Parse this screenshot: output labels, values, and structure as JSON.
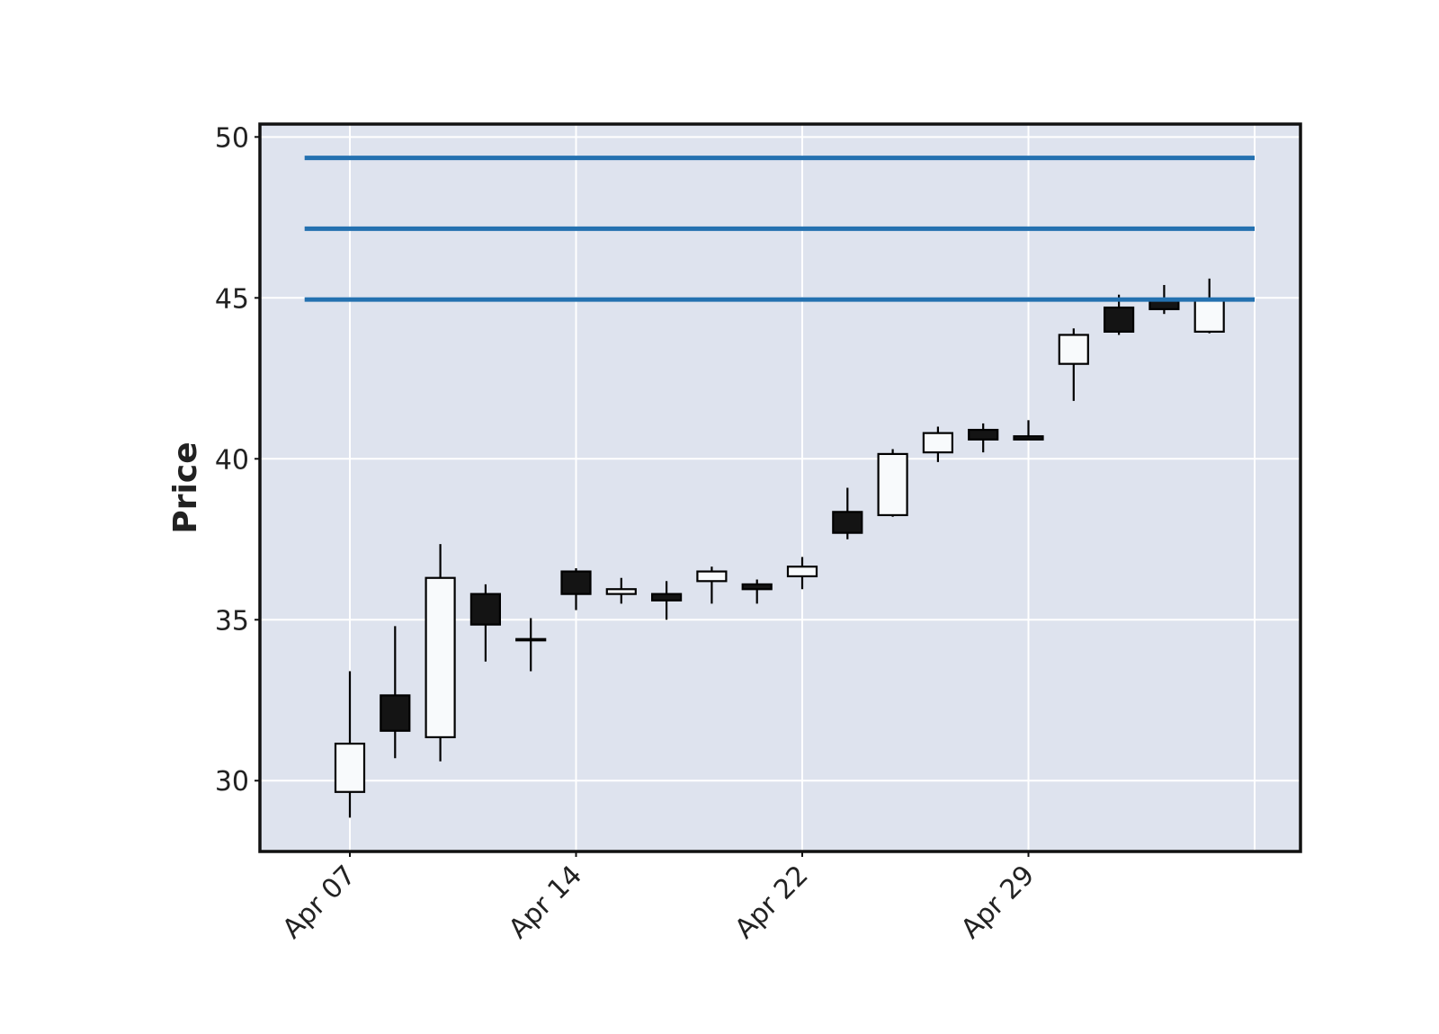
{
  "chart_data": {
    "type": "candlestick",
    "title": "",
    "xlabel": "",
    "ylabel": "Price",
    "ylim": [
      27.8,
      50.4
    ],
    "yticks": [
      30,
      35,
      40,
      45,
      50
    ],
    "x_tick_labels": [
      {
        "index": 0,
        "label": "Apr 07"
      },
      {
        "index": 5,
        "label": "Apr 14"
      },
      {
        "index": 10,
        "label": "Apr 22"
      },
      {
        "index": 15,
        "label": "Apr 29"
      }
    ],
    "grid": true,
    "colors": {
      "background": "#dee3ee",
      "grid": "#ffffff",
      "up_fill": "#f8fafc",
      "down_fill": "#141414",
      "edge": "#000000",
      "hlines": "#2471b0"
    },
    "hlines": [
      49.35,
      47.15,
      44.95
    ],
    "candles": [
      {
        "open": 29.65,
        "high": 33.4,
        "low": 28.85,
        "close": 31.15
      },
      {
        "open": 32.65,
        "high": 34.8,
        "low": 30.7,
        "close": 31.55
      },
      {
        "open": 31.35,
        "high": 37.35,
        "low": 30.6,
        "close": 36.3
      },
      {
        "open": 35.8,
        "high": 36.1,
        "low": 33.7,
        "close": 34.85
      },
      {
        "open": 34.4,
        "high": 35.05,
        "low": 33.4,
        "close": 34.4
      },
      {
        "open": 36.5,
        "high": 36.6,
        "low": 35.3,
        "close": 35.8
      },
      {
        "open": 35.8,
        "high": 36.3,
        "low": 35.5,
        "close": 35.95
      },
      {
        "open": 35.8,
        "high": 36.2,
        "low": 35.0,
        "close": 35.6
      },
      {
        "open": 36.2,
        "high": 36.65,
        "low": 35.5,
        "close": 36.5
      },
      {
        "open": 36.1,
        "high": 36.25,
        "low": 35.5,
        "close": 35.95
      },
      {
        "open": 36.35,
        "high": 36.95,
        "low": 35.95,
        "close": 36.65
      },
      {
        "open": 38.35,
        "high": 39.1,
        "low": 37.5,
        "close": 37.7
      },
      {
        "open": 38.25,
        "high": 40.3,
        "low": 38.2,
        "close": 40.15
      },
      {
        "open": 40.2,
        "high": 41.0,
        "low": 39.9,
        "close": 40.8
      },
      {
        "open": 40.9,
        "high": 41.1,
        "low": 40.2,
        "close": 40.6
      },
      {
        "open": 40.7,
        "high": 41.2,
        "low": 40.6,
        "close": 40.6
      },
      {
        "open": 42.95,
        "high": 44.05,
        "low": 41.8,
        "close": 43.85
      },
      {
        "open": 44.7,
        "high": 45.1,
        "low": 43.85,
        "close": 43.95
      },
      {
        "open": 44.95,
        "high": 45.4,
        "low": 44.5,
        "close": 44.65
      },
      {
        "open": 43.95,
        "high": 45.6,
        "low": 43.9,
        "close": 44.95
      }
    ]
  }
}
